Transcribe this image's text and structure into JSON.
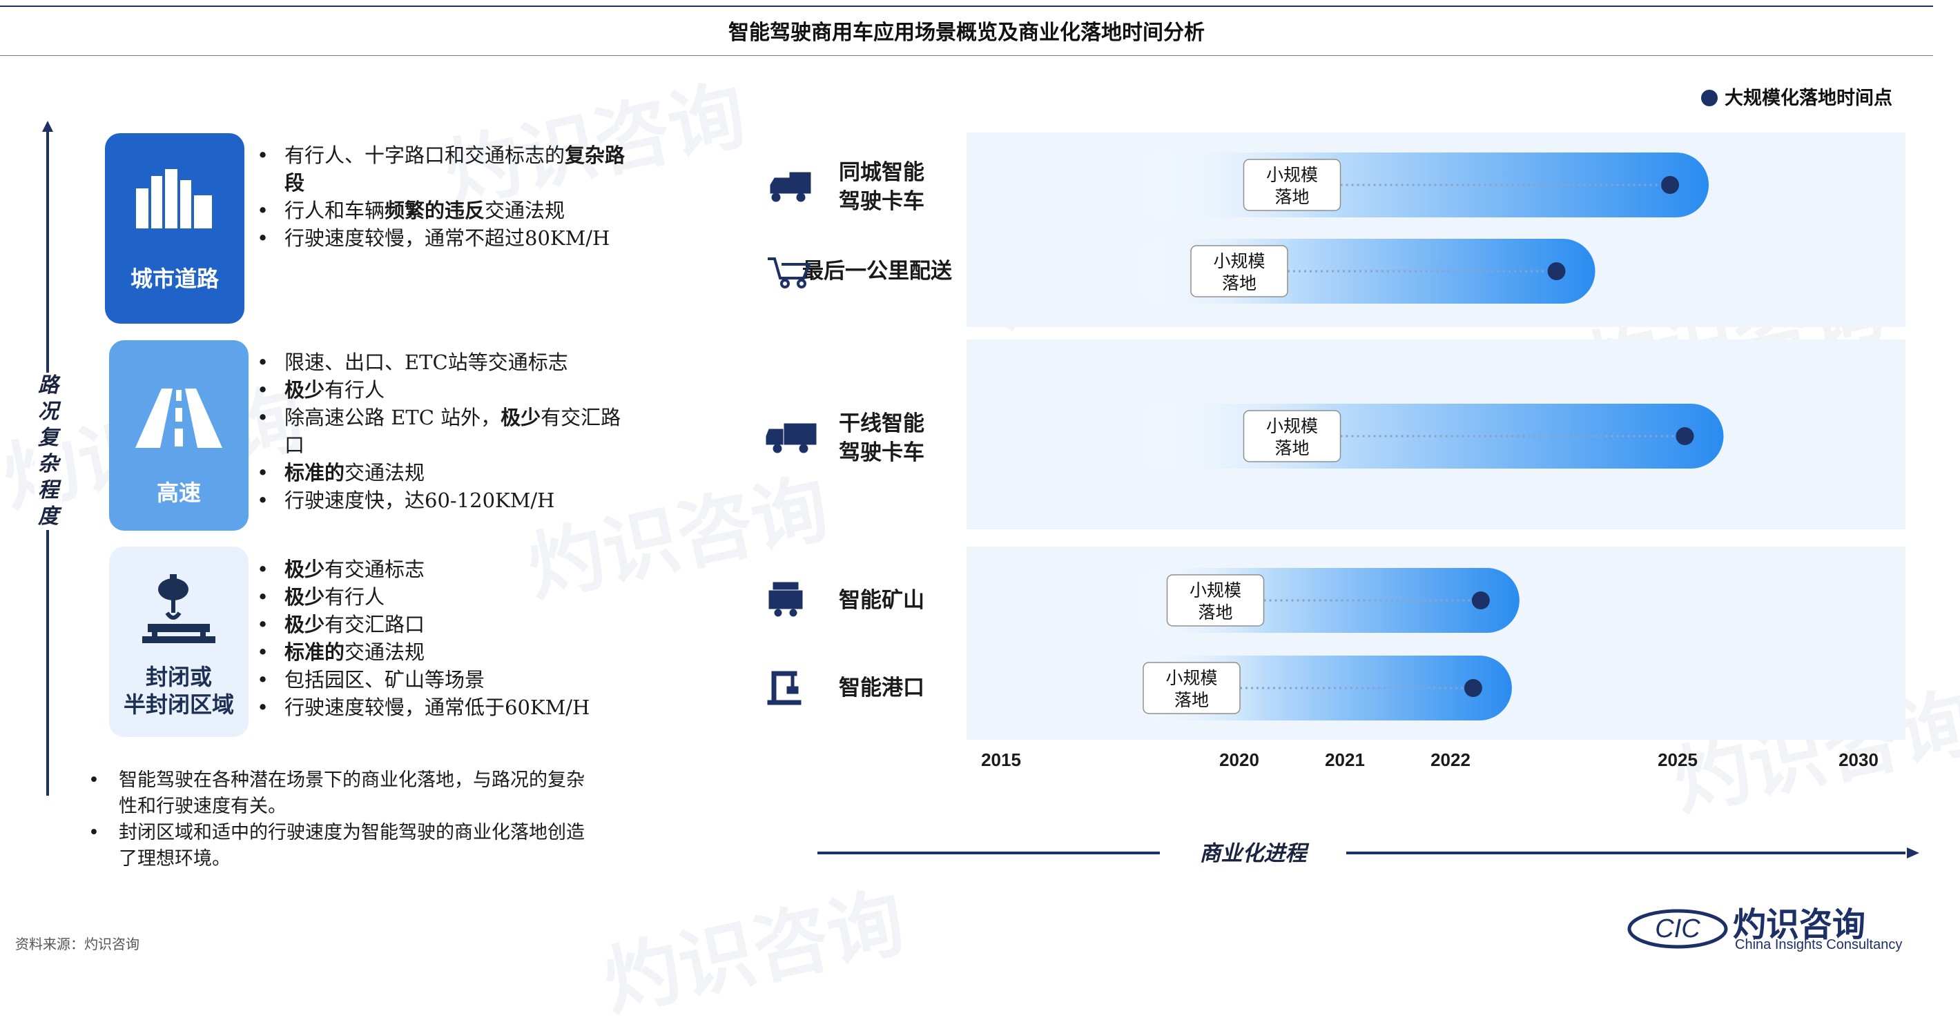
{
  "title": "智能驾驶商用车应用场景概览及商业化落地时间分析",
  "vertical_axis_label": "路况复杂程度",
  "horizontal_axis_label": "商业化进程",
  "legend_label": "大规模化落地时间点",
  "categories": [
    {
      "label": "城市道路",
      "icon": "city-buildings-icon",
      "bullets": [
        [
          {
            "t": "有行人、十字路口和交通标志的"
          },
          {
            "t": "复杂路段",
            "b": true
          }
        ],
        [
          {
            "t": "行人和车辆"
          },
          {
            "t": "频繁的违反",
            "b": true
          },
          {
            "t": "交通法规"
          }
        ],
        [
          {
            "t": "行驶速度较慢，通常不超过80KM/H"
          }
        ]
      ]
    },
    {
      "label": "高速",
      "icon": "highway-road-icon",
      "bullets": [
        [
          {
            "t": "限速、出口、ETC站等交通标志"
          }
        ],
        [
          {
            "t": "极少",
            "b": true
          },
          {
            "t": "有行人"
          }
        ],
        [
          {
            "t": "除高速公路 ETC 站外，"
          },
          {
            "t": "极少",
            "b": true
          },
          {
            "t": "有交汇路口"
          }
        ],
        [
          {
            "t": "标准的",
            "b": true
          },
          {
            "t": "交通法规"
          }
        ],
        [
          {
            "t": "行驶速度快，达60-120KM/H"
          }
        ]
      ]
    },
    {
      "label": "封闭或半封闭区域",
      "label_lines": [
        "封闭或",
        "半封闭区域"
      ],
      "icon": "mining-crane-icon",
      "bullets": [
        [
          {
            "t": "极少",
            "b": true
          },
          {
            "t": "有交通标志"
          }
        ],
        [
          {
            "t": "极少",
            "b": true
          },
          {
            "t": "有行人"
          }
        ],
        [
          {
            "t": "极少",
            "b": true
          },
          {
            "t": "有交汇路口"
          }
        ],
        [
          {
            "t": "标准的",
            "b": true
          },
          {
            "t": "交通法规"
          }
        ],
        [
          {
            "t": "包括园区、矿山等场景"
          }
        ],
        [
          {
            "t": "行驶速度较慢，通常低于60KM/H"
          }
        ]
      ]
    }
  ],
  "notes": [
    "智能驾驶在各种潜在场景下的商业化落地，与路况的复杂性和行驶速度有关。",
    "封闭区域和适中的行驶速度为智能驾驶的商业化落地创造了理想环境。"
  ],
  "source": "资料来源：灼识咨询",
  "logo": {
    "cn": "灼识咨询",
    "en": "China Insights Consultancy",
    "mark": "CIC"
  },
  "colors": {
    "dark_blue": "#1c3266",
    "bar_blue": "#2a8cf0",
    "panel_bg": "#eef5fd",
    "city_box": "#1f62c8",
    "highway_box": "#5fa3ea"
  },
  "chart_data": {
    "type": "bar",
    "orientation": "horizontal",
    "x_ticks": [
      "2015",
      "2020",
      "2021",
      "2022",
      "2025",
      "2030"
    ],
    "box_label": "小规模落地",
    "box_label_lines": [
      "小规模",
      "落地"
    ],
    "series": [
      {
        "name": "同城智能驾驶卡车",
        "label_lines": [
          "同城智能",
          "驾驶卡车"
        ],
        "icon": "delivery-truck-icon",
        "group": 1,
        "small_scale_year": 2020.5,
        "large_scale_year": 2024.9
      },
      {
        "name": "最后一公里配送",
        "label_lines": [
          "最后一公里配送"
        ],
        "icon": "shopping-cart-icon",
        "group": 1,
        "small_scale_year": 2020,
        "large_scale_year": 2023.4
      },
      {
        "name": "干线智能驾驶卡车",
        "label_lines": [
          "干线智能",
          "驾驶卡车"
        ],
        "icon": "semi-truck-icon",
        "group": 2,
        "small_scale_year": 2020.5,
        "large_scale_year": 2025.2
      },
      {
        "name": "智能矿山",
        "label_lines": [
          "智能矿山"
        ],
        "icon": "mining-cart-icon",
        "group": 3,
        "small_scale_year": 2019.5,
        "large_scale_year": 2022.4
      },
      {
        "name": "智能港口",
        "label_lines": [
          "智能港口"
        ],
        "icon": "port-crane-icon",
        "group": 3,
        "small_scale_year": 2019,
        "large_scale_year": 2022.3
      }
    ]
  }
}
